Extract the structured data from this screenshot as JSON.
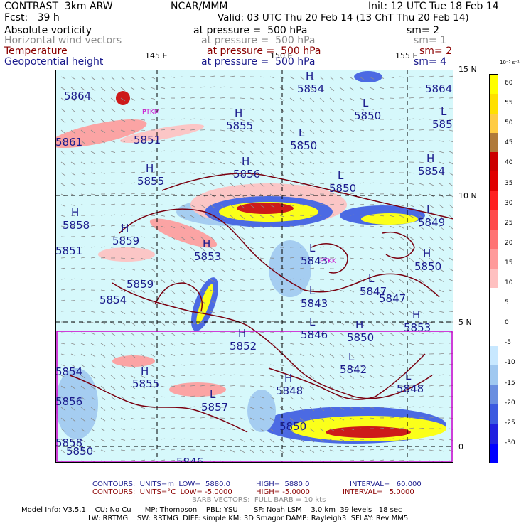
{
  "header": {
    "model": "CONTRAST  3km ARW",
    "fcst": "Fcst:   39 h",
    "org": "NCAR/MMM",
    "init": "Init: 12 UTC Tue 18 Feb 14",
    "valid": "Valid: 03 UTC Thu 20 Feb 14 (13 ChT Thu 20 Feb 14)",
    "fields": [
      {
        "name": "Absolute vorticity",
        "level": "at pressure =  500 hPa",
        "sm": "sm= 2",
        "color": "#000000"
      },
      {
        "name": "Horizontal wind vectors",
        "level": "at pressure =  500 hPa",
        "sm": "sm= 1",
        "color": "#8a8a8a"
      },
      {
        "name": "Temperature",
        "level": "at pressure =  500 hPa",
        "sm": "sm= 2",
        "color": "#8b0000"
      },
      {
        "name": "Geopotential height",
        "level": "at pressure =  500 hPa",
        "sm": "sm= 4",
        "color": "#1a1a8c"
      }
    ]
  },
  "map": {
    "lon_labels": [
      "145 E",
      "150 E",
      "155 E"
    ],
    "lat_labels": [
      "15 N",
      "10 N",
      "5 N",
      "0"
    ],
    "stations": [
      "PTKK",
      "PTKM"
    ],
    "height_labels": [
      {
        "t": "5864",
        "hl": ""
      },
      {
        "t": "5854",
        "hl": "H"
      },
      {
        "t": "5850",
        "hl": "L"
      },
      {
        "t": "585",
        "hl": "L"
      },
      {
        "t": "5851",
        "hl": ""
      },
      {
        "t": "5855",
        "hl": "H"
      },
      {
        "t": "5850",
        "hl": "L"
      },
      {
        "t": "5856",
        "hl": "H"
      },
      {
        "t": "5855",
        "hl": "H"
      },
      {
        "t": "5850",
        "hl": "L"
      },
      {
        "t": "5854",
        "hl": "H"
      },
      {
        "t": "5858",
        "hl": "H"
      },
      {
        "t": "5849",
        "hl": "L"
      },
      {
        "t": "5859",
        "hl": "H"
      },
      {
        "t": "5853",
        "hl": "H"
      },
      {
        "t": "5843",
        "hl": "L"
      },
      {
        "t": "5850",
        "hl": "H"
      },
      {
        "t": "5854",
        "hl": ""
      },
      {
        "t": "5843",
        "hl": "L"
      },
      {
        "t": "5847",
        "hl": "L"
      },
      {
        "t": "5853",
        "hl": "H"
      },
      {
        "t": "5846",
        "hl": "L"
      },
      {
        "t": "5850",
        "hl": "H"
      },
      {
        "t": "5852",
        "hl": "H"
      },
      {
        "t": "5842",
        "hl": "L"
      },
      {
        "t": "5848",
        "hl": "H"
      },
      {
        "t": "5848",
        "hl": "L"
      },
      {
        "t": "5855",
        "hl": "H"
      },
      {
        "t": "5857",
        "hl": "L"
      },
      {
        "t": "5850",
        "hl": ""
      },
      {
        "t": "5846",
        "hl": ""
      },
      {
        "t": "5854",
        "hl": ""
      },
      {
        "t": "5856",
        "hl": ""
      },
      {
        "t": "5851",
        "hl": ""
      },
      {
        "t": "5858",
        "hl": ""
      },
      {
        "t": "5859",
        "hl": ""
      },
      {
        "t": "5861",
        "hl": ""
      },
      {
        "t": "5864",
        "hl": ""
      },
      {
        "t": "5847",
        "hl": ""
      },
      {
        "t": "5850",
        "hl": ""
      }
    ]
  },
  "colorbar": {
    "unit": "10⁻⁵ s⁻¹",
    "labels": [
      "60",
      "55",
      "50",
      "45",
      "40",
      "35",
      "30",
      "25",
      "20",
      "15",
      "10",
      "5",
      "0",
      "-5",
      "-10",
      "-15",
      "-20",
      "-25",
      "-30"
    ],
    "colors": [
      "#ffff00",
      "#ffe000",
      "#ffcc44",
      "#b07a3a",
      "#cc0000",
      "#e00000",
      "#ff2020",
      "#ff4a4a",
      "#ff7373",
      "#ff9a9a",
      "#ffc0c0",
      "#ffffff",
      "#ffffff",
      "#ffffff",
      "#c8e8ff",
      "#a0c8f0",
      "#6a8ee0",
      "#3c5ae0",
      "#2020e0",
      "#0000ff"
    ]
  },
  "footer": {
    "line1_left": "CONTOURS:  UNITS=m  LOW=  5880.0",
    "line1_mid": "HIGH=  5880.0",
    "line1_right": "INTERVAL=   60.000",
    "line2_left": "CONTOURS:  UNITS=°C  LOW= -5.0000",
    "line2_mid": "HIGH= -5.0000",
    "line2_right": "INTERVAL=   5.0000",
    "line3": "BARB VECTORS:  FULL BARB = 10 kts",
    "info1": "Model Info: V3.5.1    CU: No Cu      MP: Thompson    PBL: YSU       SF: Noah LSM    3.0 km  39 levels   18 sec",
    "info2": "LW: RRTMG    SW: RRTMG  DIFF: simple KM: 3D Smagor DAMP: Rayleigh3  SFLAY: Rev MM5"
  }
}
